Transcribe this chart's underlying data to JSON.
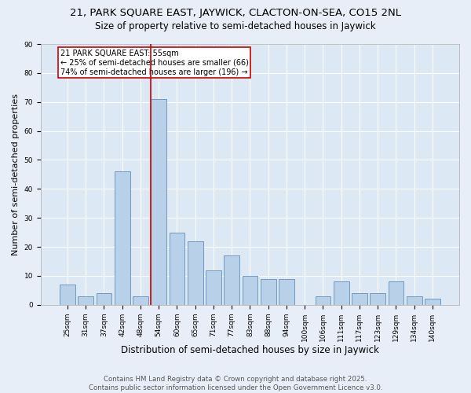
{
  "title": "21, PARK SQUARE EAST, JAYWICK, CLACTON-ON-SEA, CO15 2NL",
  "subtitle": "Size of property relative to semi-detached houses in Jaywick",
  "xlabel": "Distribution of semi-detached houses by size in Jaywick",
  "ylabel": "Number of semi-detached properties",
  "categories": [
    "25sqm",
    "31sqm",
    "37sqm",
    "42sqm",
    "48sqm",
    "54sqm",
    "60sqm",
    "65sqm",
    "71sqm",
    "77sqm",
    "83sqm",
    "88sqm",
    "94sqm",
    "100sqm",
    "106sqm",
    "111sqm",
    "117sqm",
    "123sqm",
    "129sqm",
    "134sqm",
    "140sqm"
  ],
  "values": [
    7,
    3,
    4,
    46,
    3,
    71,
    25,
    22,
    12,
    17,
    10,
    9,
    9,
    0,
    3,
    8,
    4,
    4,
    8,
    3,
    2
  ],
  "bar_color": "#b8d0e8",
  "bar_edge_color": "#6090b8",
  "vline_color": "#cc0000",
  "annotation_title": "21 PARK SQUARE EAST: 55sqm",
  "annotation_line1": "← 25% of semi-detached houses are smaller (66)",
  "annotation_line2": "74% of semi-detached houses are larger (196) →",
  "annotation_box_color": "#cc0000",
  "background_color": "#e8eef8",
  "plot_bg_color": "#dce8f4",
  "grid_color": "#ffffff",
  "ylim": [
    0,
    90
  ],
  "yticks": [
    0,
    10,
    20,
    30,
    40,
    50,
    60,
    70,
    80,
    90
  ],
  "footnote1": "Contains HM Land Registry data © Crown copyright and database right 2025.",
  "footnote2": "Contains public sector information licensed under the Open Government Licence v3.0.",
  "title_fontsize": 9.5,
  "subtitle_fontsize": 8.5,
  "xlabel_fontsize": 8.5,
  "ylabel_fontsize": 8,
  "tick_fontsize": 6.5,
  "footnote_fontsize": 6.2,
  "ann_fontsize": 7.0
}
